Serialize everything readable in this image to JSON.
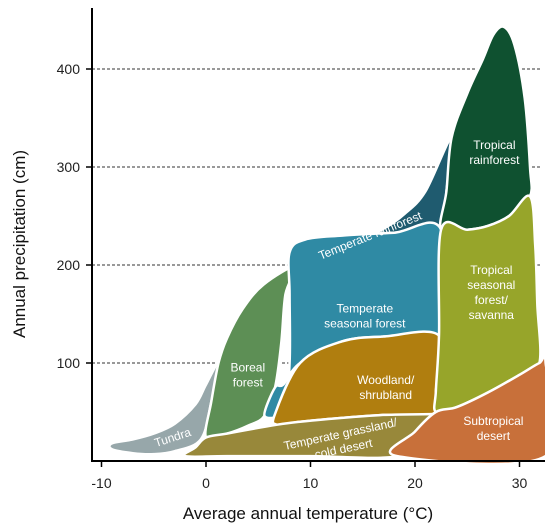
{
  "chart_data": {
    "type": "area",
    "xlabel": "Average annual temperature (°C)",
    "ylabel": "Annual precipitation (cm)",
    "xlim": [
      -12,
      32.5
    ],
    "ylim": [
      0,
      450
    ],
    "x_ticks": [
      "-10",
      "0",
      "10",
      "20",
      "30"
    ],
    "y_ticks": [
      "100",
      "200",
      "300",
      "400"
    ],
    "grid": "dashed horizontal at y ticks",
    "biomes": [
      {
        "name": "Tundra",
        "lines": [
          "Tundra"
        ],
        "color": "#97a7aa",
        "rotate": -18,
        "temp_range": [
          -9,
          2
        ],
        "precip_range": [
          5,
          100
        ],
        "label_at": [
          -3.2,
          24
        ],
        "polygon": [
          [
            -9,
            18
          ],
          [
            -7,
            22
          ],
          [
            -5,
            28
          ],
          [
            -3,
            38
          ],
          [
            -1,
            58
          ],
          [
            0,
            78
          ],
          [
            1.2,
            100
          ],
          [
            0.5,
            60
          ],
          [
            -0.5,
            22
          ],
          [
            -3,
            10
          ],
          [
            -5,
            7
          ],
          [
            -7,
            8
          ],
          [
            -9,
            12
          ]
        ]
      },
      {
        "name": "Boreal forest",
        "lines": [
          "Boreal",
          "forest"
        ],
        "color": "#5d8f55",
        "rotate": 0,
        "temp_range": [
          -3,
          9
        ],
        "precip_range": [
          15,
          200
        ],
        "label_at": [
          4,
          88
        ],
        "polygon": [
          [
            0,
            24
          ],
          [
            0.5,
            60
          ],
          [
            1.2,
            100
          ],
          [
            2,
            125
          ],
          [
            3.5,
            155
          ],
          [
            5.5,
            180
          ],
          [
            8.5,
            198
          ],
          [
            7.6,
            170
          ],
          [
            7.2,
            120
          ],
          [
            6.6,
            75
          ],
          [
            5.6,
            46
          ],
          [
            4,
            36
          ],
          [
            2,
            28
          ]
        ]
      },
      {
        "name": "Temperate rainforest",
        "lines": [
          "Temperate rainforest"
        ],
        "color": "#1f5b6f",
        "rotate": -22,
        "temp_range": [
          8,
          24
        ],
        "precip_range": [
          185,
          330
        ],
        "label_at": [
          15.7,
          230
        ],
        "polygon": [
          [
            8.5,
            198
          ],
          [
            10,
            212
          ],
          [
            12.5,
            220
          ],
          [
            15,
            228
          ],
          [
            17,
            237
          ],
          [
            19,
            252
          ],
          [
            21,
            275
          ],
          [
            23.5,
            330
          ],
          [
            23,
            275
          ],
          [
            22.5,
            236
          ],
          [
            18,
            233
          ],
          [
            13,
            230
          ],
          [
            9.5,
            226
          ],
          [
            8,
            213
          ]
        ]
      },
      {
        "name": "Temperate seasonal forest",
        "lines": [
          "Temperate",
          "seasonal forest"
        ],
        "color": "#2f8aa4",
        "rotate": 0,
        "temp_range": [
          6,
          22.5
        ],
        "precip_range": [
          45,
          236
        ],
        "label_at": [
          15.2,
          148
        ],
        "polygon": [
          [
            8,
            213
          ],
          [
            9.5,
            226
          ],
          [
            13,
            230
          ],
          [
            18,
            233
          ],
          [
            22.5,
            236
          ],
          [
            22.3,
            128
          ],
          [
            17,
            127
          ],
          [
            13,
            122
          ],
          [
            9,
            100
          ],
          [
            7.4,
            78
          ],
          [
            6.6,
            75
          ],
          [
            5.6,
            46
          ],
          [
            7.5,
            52
          ],
          [
            8,
            100
          ],
          [
            8,
            170
          ]
        ]
      },
      {
        "name": "Woodland/shrubland",
        "lines": [
          "Woodland/",
          "shrubland"
        ],
        "color": "#b07e0f",
        "rotate": 0,
        "temp_range": [
          6.5,
          22.5
        ],
        "precip_range": [
          38,
          128
        ],
        "label_at": [
          17.2,
          75
        ],
        "polygon": [
          [
            6.6,
            48
          ],
          [
            9,
            100
          ],
          [
            13,
            122
          ],
          [
            17,
            127
          ],
          [
            22.3,
            128
          ],
          [
            22,
            72
          ],
          [
            21.7,
            48
          ],
          [
            17,
            47
          ],
          [
            13,
            44
          ],
          [
            9,
            40
          ],
          [
            6.8,
            37
          ]
        ]
      },
      {
        "name": "Temperate grassland/ cold desert",
        "lines": [
          "Temperate grassland/",
          "cold desert"
        ],
        "color": "#98883a",
        "rotate": -12,
        "temp_range": [
          -2,
          22
        ],
        "precip_range": [
          5,
          50
        ],
        "label_at": [
          13,
          20
        ],
        "polygon": [
          [
            0,
            24
          ],
          [
            2,
            28
          ],
          [
            6.8,
            37
          ],
          [
            9,
            40
          ],
          [
            13,
            44
          ],
          [
            17,
            47
          ],
          [
            21.7,
            48
          ],
          [
            22.5,
            50
          ],
          [
            20,
            30
          ],
          [
            18.3,
            5
          ],
          [
            10,
            5
          ],
          [
            2,
            5
          ],
          [
            -2,
            5
          ],
          [
            -1,
            14
          ]
        ]
      },
      {
        "name": "Tropical rainforest",
        "lines": [
          "Tropical",
          "rainforest"
        ],
        "color": "#0f5130",
        "rotate": 0,
        "temp_range": [
          23.5,
          31
        ],
        "precip_range": [
          230,
          445
        ],
        "label_at": [
          27.6,
          315
        ],
        "polygon": [
          [
            23.5,
            330
          ],
          [
            25,
            375
          ],
          [
            26.5,
            410
          ],
          [
            27.5,
            435
          ],
          [
            28.5,
            443
          ],
          [
            29.5,
            425
          ],
          [
            30.5,
            370
          ],
          [
            31,
            300
          ],
          [
            31,
            270
          ],
          [
            29,
            250
          ],
          [
            27,
            240
          ],
          [
            25,
            236
          ],
          [
            22.5,
            236
          ],
          [
            23,
            275
          ]
        ]
      },
      {
        "name": "Tropical seasonal forest/ savanna",
        "lines": [
          "Tropical",
          "seasonal",
          "forest/",
          "savanna"
        ],
        "color": "#97a52a",
        "rotate": 0,
        "temp_range": [
          22,
          32
        ],
        "precip_range": [
          50,
          275
        ],
        "label_at": [
          27.3,
          172
        ],
        "polygon": [
          [
            22.5,
            236
          ],
          [
            25,
            236
          ],
          [
            27,
            240
          ],
          [
            29,
            250
          ],
          [
            31,
            270
          ],
          [
            31.5,
            220
          ],
          [
            31.7,
            160
          ],
          [
            31.9,
            100
          ],
          [
            30,
            88
          ],
          [
            27,
            70
          ],
          [
            24,
            55
          ],
          [
            22,
            50
          ],
          [
            22,
            72
          ],
          [
            22.3,
            128
          ]
        ]
      },
      {
        "name": "Subtropical desert",
        "lines": [
          "Subtropical",
          "desert"
        ],
        "color": "#c8703a",
        "rotate": 0,
        "temp_range": [
          18,
          32.5
        ],
        "precip_range": [
          5,
          100
        ],
        "label_at": [
          27.5,
          33
        ],
        "polygon": [
          [
            18.3,
            5
          ],
          [
            20,
            30
          ],
          [
            22,
            50
          ],
          [
            24,
            55
          ],
          [
            27,
            70
          ],
          [
            30,
            88
          ],
          [
            31.9,
            100
          ],
          [
            32.5,
            100
          ],
          [
            32.5,
            5
          ]
        ]
      }
    ]
  }
}
